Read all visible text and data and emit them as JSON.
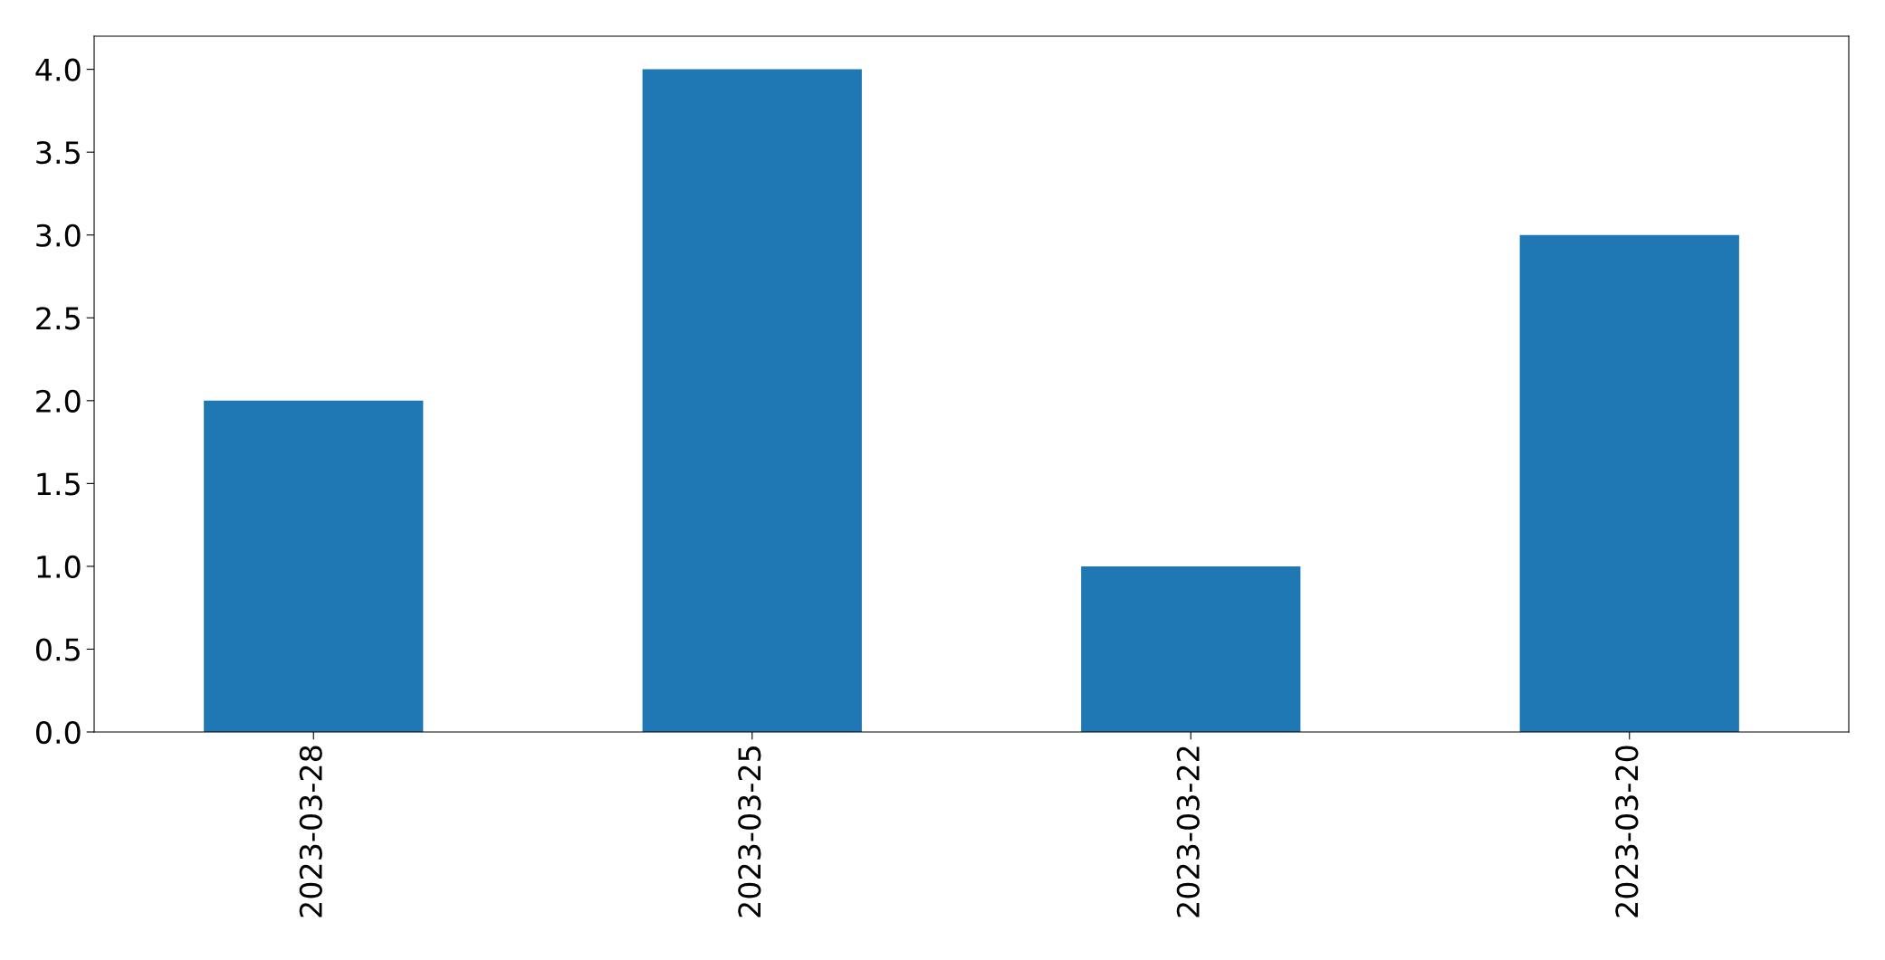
{
  "chart_data": {
    "type": "bar",
    "categories": [
      "2023-03-28",
      "2023-03-25",
      "2023-03-22",
      "2023-03-20"
    ],
    "values": [
      2,
      4,
      1,
      3
    ],
    "color": "#1f77b4",
    "ylim": [
      0,
      4.2
    ],
    "yticks": [
      {
        "value": 0,
        "label": "0.0"
      },
      {
        "value": 0.5,
        "label": "0.5"
      },
      {
        "value": 1,
        "label": "1.0"
      },
      {
        "value": 1.5,
        "label": "1.5"
      },
      {
        "value": 2,
        "label": "2.0"
      },
      {
        "value": 2.5,
        "label": "2.5"
      },
      {
        "value": 3,
        "label": "3.0"
      },
      {
        "value": 3.5,
        "label": "3.5"
      },
      {
        "value": 4,
        "label": "4.0"
      }
    ],
    "grid": false,
    "legend": false
  }
}
